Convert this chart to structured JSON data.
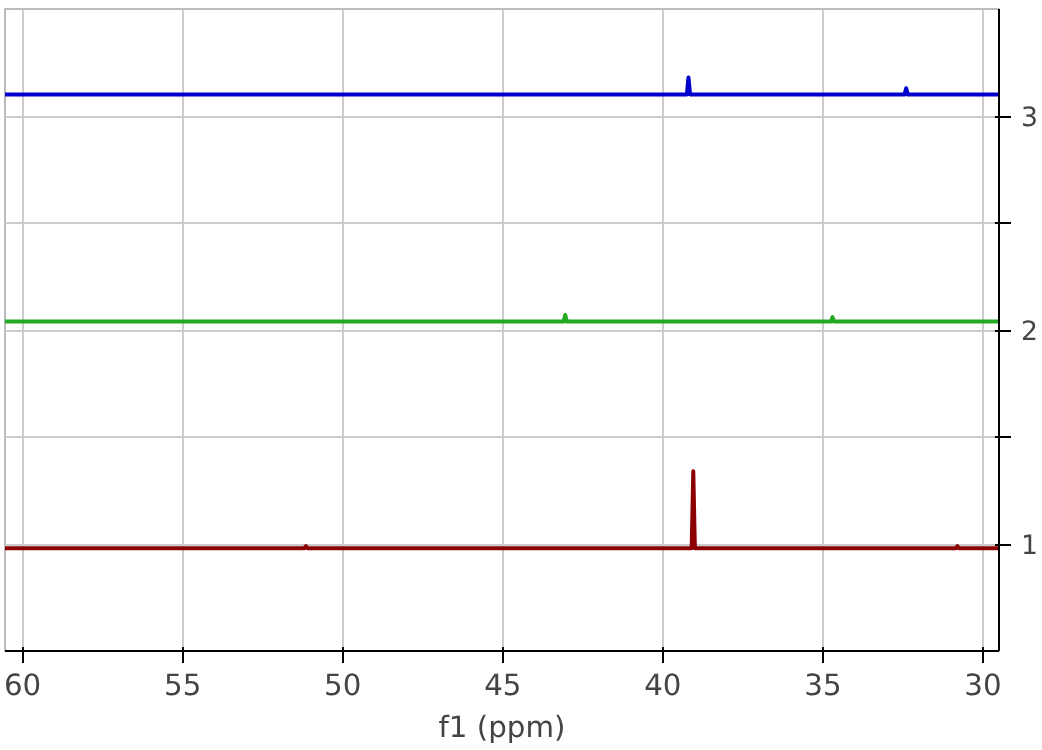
{
  "chart_data": {
    "type": "line",
    "xlabel": "f1 (ppm)",
    "xlim": [
      60.55,
      29.5
    ],
    "xticks": [
      60,
      55,
      50,
      45,
      40,
      35,
      30
    ],
    "ylim": [
      0.5,
      3.5
    ],
    "yticks": [
      1,
      {
        "value": 1.5,
        "label": null
      },
      2,
      {
        "value": 2.5,
        "label": null
      },
      3
    ],
    "grid": true,
    "marker": "none",
    "line_style": "solid",
    "series": [
      {
        "color": "#0000cc",
        "x": [
          60.55,
          39.25,
          39.2,
          39.15,
          32.45,
          32.4,
          32.35,
          29.5
        ],
        "values": [
          3.1,
          3.1,
          3.18,
          3.1,
          3.1,
          3.13,
          3.1,
          3.1
        ]
      },
      {
        "color": "#22aa22",
        "x": [
          60.55,
          43.1,
          43.05,
          43.0,
          34.75,
          34.7,
          34.65,
          29.5
        ],
        "values": [
          2.04,
          2.04,
          2.07,
          2.04,
          2.04,
          2.06,
          2.04,
          2.04
        ]
      },
      {
        "color": "#8b0000",
        "x": [
          60.55,
          51.2,
          51.15,
          51.1,
          39.1,
          39.05,
          39.0,
          30.85,
          30.8,
          30.75,
          29.5
        ],
        "values": [
          0.98,
          0.98,
          0.99,
          0.98,
          0.98,
          1.34,
          0.98,
          0.98,
          0.99,
          0.98,
          0.98
        ]
      }
    ]
  }
}
